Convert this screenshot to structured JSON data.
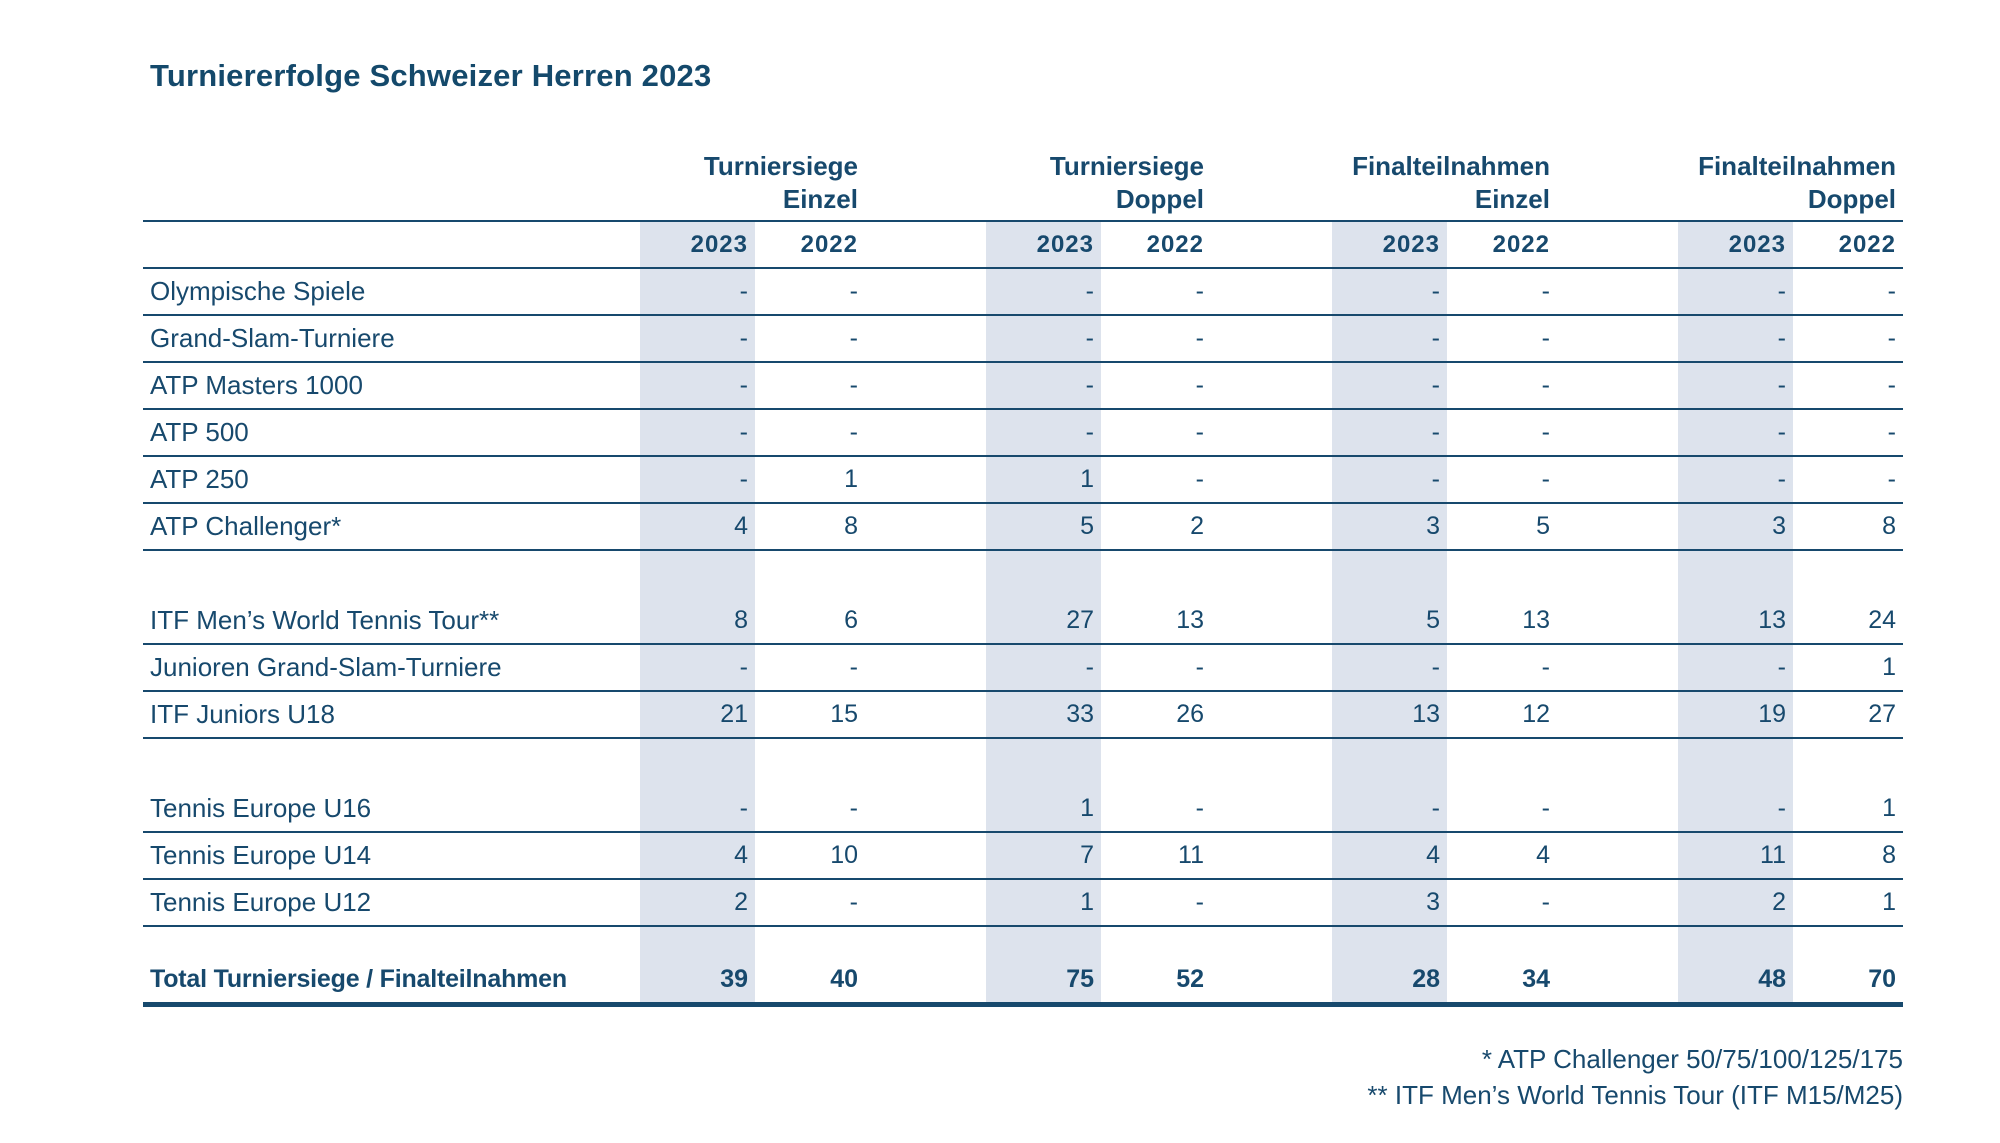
{
  "title": "Turniererfolge Schweizer Herren 2023",
  "colors": {
    "navy_text": "#17496d",
    "band_background": "#dde3ed",
    "title_color": "#14496b"
  },
  "table": {
    "groups": [
      {
        "line1": "Turniersiege",
        "line2": "Einzel"
      },
      {
        "line1": "Turniersiege",
        "line2": "Doppel"
      },
      {
        "line1": "Finalteilnahmen",
        "line2": "Einzel"
      },
      {
        "line1": "Finalteilnahmen",
        "line2": "Doppel"
      }
    ],
    "year_headers": [
      "2023",
      "2022"
    ],
    "rows": [
      {
        "label": "Olympische Spiele",
        "values": [
          "-",
          "-",
          "-",
          "-",
          "-",
          "-",
          "-",
          "-"
        ]
      },
      {
        "label": "Grand-Slam-Turniere",
        "values": [
          "-",
          "-",
          "-",
          "-",
          "-",
          "-",
          "-",
          "-"
        ]
      },
      {
        "label": "ATP Masters 1000",
        "values": [
          "-",
          "-",
          "-",
          "-",
          "-",
          "-",
          "-",
          "-"
        ]
      },
      {
        "label": "ATP 500",
        "values": [
          "-",
          "-",
          "-",
          "-",
          "-",
          "-",
          "-",
          "-"
        ]
      },
      {
        "label": "ATP 250",
        "values": [
          "-",
          "1",
          "1",
          "-",
          "-",
          "-",
          "-",
          "-"
        ]
      },
      {
        "label": "ATP Challenger*",
        "values": [
          "4",
          "8",
          "5",
          "2",
          "3",
          "5",
          "3",
          "8"
        ]
      },
      {
        "spacer": true
      },
      {
        "label": "ITF Men’s World Tennis Tour**",
        "values": [
          "8",
          "6",
          "27",
          "13",
          "5",
          "13",
          "13",
          "24"
        ]
      },
      {
        "label": "Junioren Grand-Slam-Turniere",
        "values": [
          "-",
          "-",
          "-",
          "-",
          "-",
          "-",
          "-",
          "1"
        ]
      },
      {
        "label": "ITF Juniors U18",
        "values": [
          "21",
          "15",
          "33",
          "26",
          "13",
          "12",
          "19",
          "27"
        ]
      },
      {
        "spacer": true
      },
      {
        "label": "Tennis Europe U16",
        "values": [
          "-",
          "-",
          "1",
          "-",
          "-",
          "-",
          "-",
          "1"
        ]
      },
      {
        "label": "Tennis Europe U14",
        "values": [
          "4",
          "10",
          "7",
          "11",
          "4",
          "4",
          "11",
          "8"
        ]
      },
      {
        "label": "Tennis Europe U12",
        "values": [
          "2",
          "-",
          "1",
          "-",
          "3",
          "-",
          "2",
          "1"
        ]
      },
      {
        "spacer": true,
        "small": true
      },
      {
        "label": "Total Turniersiege / Finalteilnahmen",
        "values": [
          "39",
          "40",
          "75",
          "52",
          "28",
          "34",
          "48",
          "70"
        ],
        "total": true
      }
    ],
    "footnotes": [
      "* ATP Challenger 50/75/100/125/175",
      "** ITF Men’s World Tennis Tour (ITF M15/M25)"
    ]
  }
}
